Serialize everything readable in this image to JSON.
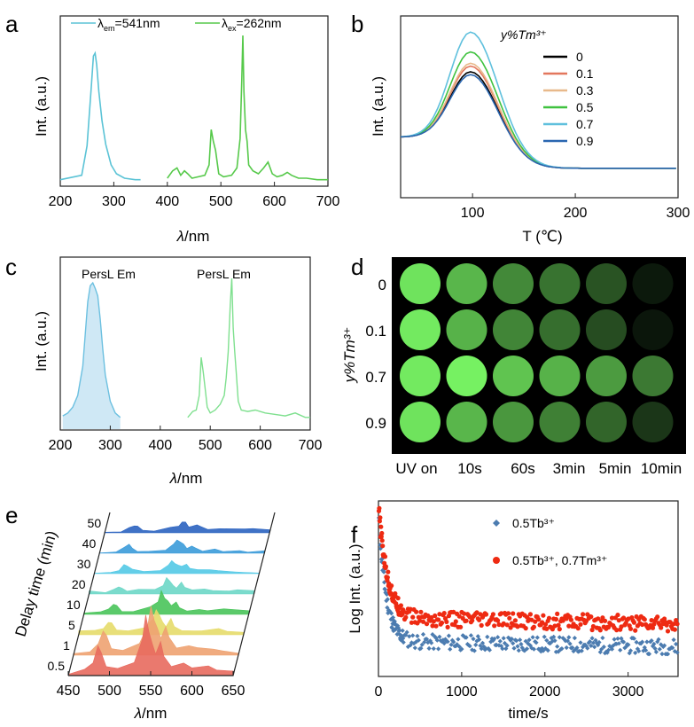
{
  "chart_data": [
    {
      "panel": "a",
      "type": "line",
      "xlabel_var": "λ",
      "xlabel_unit": "/nm",
      "ylabel": "Int. (a.u.)",
      "xlim": [
        200,
        700
      ],
      "xticks": [
        200,
        300,
        400,
        500,
        600,
        700
      ],
      "legend_placement": "top",
      "series": [
        {
          "name_base": "λ",
          "name_sub": "em",
          "name_rest": "=541nm",
          "color": "#5bc3d6",
          "x": [
            200,
            240,
            250,
            258,
            262,
            265,
            268,
            272,
            278,
            285,
            295,
            305,
            320,
            340,
            350
          ],
          "y": [
            0.02,
            0.05,
            0.25,
            0.65,
            0.86,
            0.88,
            0.8,
            0.62,
            0.42,
            0.26,
            0.12,
            0.06,
            0.03,
            0.02,
            0.02
          ]
        },
        {
          "name_base": "λ",
          "name_sub": "ex",
          "name_rest": "=262nm",
          "color": "#56c94a",
          "x": [
            400,
            410,
            418,
            425,
            432,
            438,
            446,
            458,
            470,
            478,
            482,
            486,
            490,
            496,
            505,
            520,
            530,
            536,
            539,
            541,
            543,
            546,
            549,
            552,
            560,
            570,
            580,
            588,
            596,
            605,
            615,
            624,
            632,
            645,
            660,
            680,
            700
          ],
          "y": [
            0.03,
            0.08,
            0.1,
            0.05,
            0.08,
            0.06,
            0.03,
            0.04,
            0.05,
            0.12,
            0.36,
            0.28,
            0.22,
            0.06,
            0.04,
            0.05,
            0.1,
            0.3,
            0.7,
            1.0,
            0.62,
            0.36,
            0.28,
            0.12,
            0.08,
            0.06,
            0.1,
            0.14,
            0.06,
            0.04,
            0.05,
            0.07,
            0.05,
            0.03,
            0.03,
            0.02,
            0.02
          ]
        }
      ]
    },
    {
      "panel": "b",
      "type": "line",
      "xlabel": "T (℃)",
      "ylabel": "Int. (a.u.)",
      "xlim": [
        30,
        300
      ],
      "xticks": [
        100,
        200,
        300
      ],
      "legend_title": "y%Tm³⁺",
      "legend_placement": "right",
      "series": [
        {
          "name": "0",
          "color": "#000000",
          "peak": 0.68
        },
        {
          "name": "0.1",
          "color": "#e3775d",
          "peak": 0.72
        },
        {
          "name": "0.3",
          "color": "#e8b98b",
          "peak": 0.74
        },
        {
          "name": "0.5",
          "color": "#3fc23f",
          "peak": 0.82
        },
        {
          "name": "0.7",
          "color": "#5fc0dd",
          "peak": 0.96
        },
        {
          "name": "0.9",
          "color": "#2a66b0",
          "peak": 0.66
        }
      ]
    },
    {
      "panel": "c",
      "type": "line",
      "xlabel_var": "λ",
      "xlabel_unit": "/nm",
      "ylabel": "Int. (a.u.)",
      "xlim": [
        200,
        700
      ],
      "xticks": [
        200,
        300,
        400,
        500,
        600,
        700
      ],
      "annotations": [
        "PersL Em",
        "PersL Em"
      ],
      "series": [
        {
          "name": "",
          "color": "#6cc0e0",
          "fill": "#cfe8f5",
          "x": [
            205,
            215,
            225,
            235,
            245,
            250,
            255,
            260,
            265,
            270,
            275,
            280,
            285,
            290,
            300,
            310,
            320
          ],
          "y": [
            0.06,
            0.08,
            0.12,
            0.2,
            0.4,
            0.62,
            0.84,
            0.95,
            0.97,
            0.93,
            0.88,
            0.72,
            0.52,
            0.34,
            0.16,
            0.08,
            0.05
          ]
        },
        {
          "name": "",
          "color": "#7fe08f",
          "x": [
            455,
            465,
            472,
            478,
            482,
            486,
            490,
            494,
            500,
            510,
            520,
            528,
            532,
            536,
            540,
            543,
            546,
            549,
            552,
            556,
            562,
            575,
            590,
            610,
            630,
            650,
            670,
            690,
            700
          ],
          "y": [
            0.05,
            0.09,
            0.1,
            0.2,
            0.46,
            0.36,
            0.24,
            0.12,
            0.08,
            0.1,
            0.14,
            0.2,
            0.32,
            0.5,
            0.82,
            1.0,
            0.66,
            0.5,
            0.36,
            0.16,
            0.1,
            0.09,
            0.1,
            0.08,
            0.07,
            0.06,
            0.08,
            0.05,
            0.05
          ]
        }
      ]
    },
    {
      "panel": "d",
      "type": "heatmap",
      "ylabel": "y%Tm³⁺",
      "rows": [
        "0",
        "0.1",
        "0.7",
        "0.9"
      ],
      "columns": [
        "UV on",
        "10s",
        "60s",
        "3min",
        "5min",
        "10min"
      ],
      "brightness": [
        [
          0.92,
          0.72,
          0.52,
          0.42,
          0.28,
          0.02
        ],
        [
          0.95,
          0.7,
          0.5,
          0.4,
          0.25,
          0.01
        ],
        [
          0.95,
          0.98,
          0.78,
          0.7,
          0.6,
          0.45
        ],
        [
          0.92,
          0.72,
          0.58,
          0.48,
          0.36,
          0.15
        ]
      ]
    },
    {
      "panel": "e",
      "type": "area",
      "xlabel_var": "λ",
      "xlabel_unit": "/nm",
      "ylabel": "Delay time (min)",
      "xlim": [
        450,
        650
      ],
      "xticks": [
        450,
        500,
        550,
        600,
        650
      ],
      "series": [
        {
          "name": "0.5",
          "color": "#e86a5e",
          "scale": 1.0
        },
        {
          "name": "1",
          "color": "#eea271",
          "scale": 0.8
        },
        {
          "name": "5",
          "color": "#e6db6a",
          "scale": 0.4
        },
        {
          "name": "10",
          "color": "#49c45a",
          "scale": 0.35
        },
        {
          "name": "20",
          "color": "#6dd7c7",
          "scale": 0.25
        },
        {
          "name": "30",
          "color": "#53c9e6",
          "scale": 0.22
        },
        {
          "name": "40",
          "color": "#3b9bd9",
          "scale": 0.2
        },
        {
          "name": "50",
          "color": "#2b63c0",
          "scale": 0.18
        }
      ]
    },
    {
      "panel": "f",
      "type": "scatter",
      "xlabel": "time/s",
      "ylabel": "Log Int. (a.u.)",
      "xlim": [
        0,
        3600
      ],
      "xticks": [
        0,
        1000,
        2000,
        3000
      ],
      "legend_placement": "top-right",
      "series": [
        {
          "name": "0.5Tb³⁺",
          "color": "#4c7cb0",
          "start": 0.93,
          "plateau": 0.2,
          "tau": 90
        },
        {
          "name": "0.5Tb³⁺, 0.7Tm³⁺",
          "color": "#ee2a12",
          "start": 0.97,
          "plateau": 0.33,
          "tau": 110
        }
      ]
    }
  ],
  "panels": {
    "a": "a",
    "b": "b",
    "c": "c",
    "d": "d",
    "e": "e",
    "f": "f"
  }
}
